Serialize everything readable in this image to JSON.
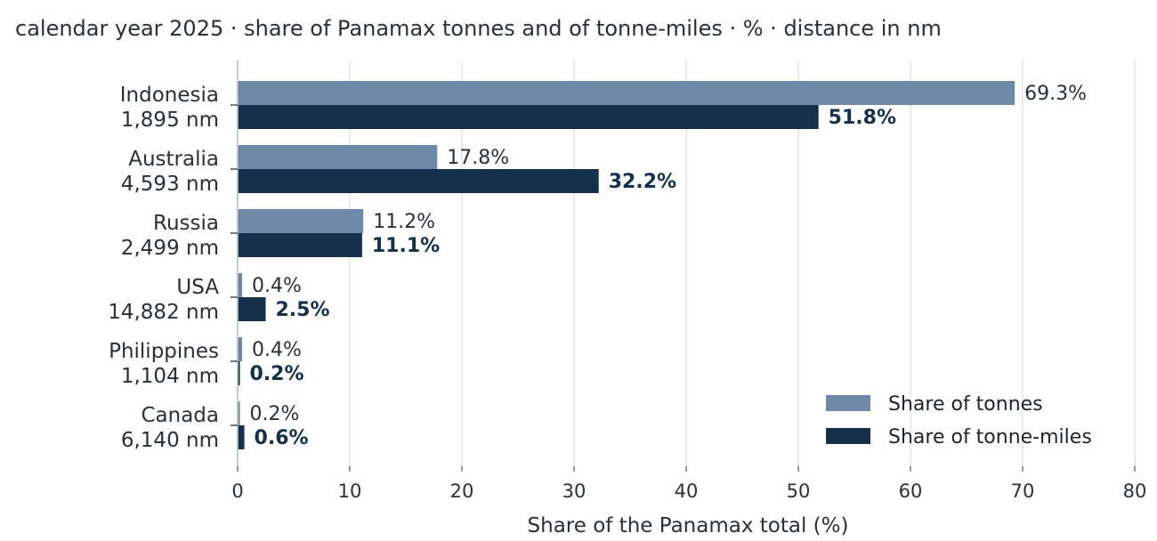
{
  "subtitle": "calendar year 2025 · share of Panamax tonnes and of tonne-miles · % · distance in nm",
  "chart_data": {
    "type": "bar",
    "orientation": "horizontal",
    "subtitle": "calendar year 2025 · share of Panamax tonnes and of tonne-miles · % · distance in nm",
    "xlabel": "Share of the Panamax total (%)",
    "ylabel": "",
    "xlim": [
      0,
      80
    ],
    "xticks": [
      0,
      10,
      20,
      30,
      40,
      50,
      60,
      70,
      80
    ],
    "grid": "vertical",
    "legend_position": "bottom-right",
    "categories": [
      {
        "name": "Indonesia",
        "distance": "1,895 nm"
      },
      {
        "name": "Australia",
        "distance": "4,593 nm"
      },
      {
        "name": "Russia",
        "distance": "2,499 nm"
      },
      {
        "name": "USA",
        "distance": "14,882 nm"
      },
      {
        "name": "Philippines",
        "distance": "1,104 nm"
      },
      {
        "name": "Canada",
        "distance": "6,140 nm"
      }
    ],
    "series": [
      {
        "name": "Share of tonnes",
        "color": "#6e89a7",
        "values": [
          69.3,
          17.8,
          11.2,
          0.4,
          0.4,
          0.2
        ],
        "labels": [
          "69.3%",
          "17.8%",
          "11.2%",
          "0.4%",
          "0.4%",
          "0.2%"
        ]
      },
      {
        "name": "Share of tonne-miles",
        "color": "#15304a",
        "values": [
          51.8,
          32.2,
          11.1,
          2.5,
          0.2,
          0.6
        ],
        "labels": [
          "51.8%",
          "32.2%",
          "11.1%",
          "2.5%",
          "0.2%",
          "0.6%"
        ]
      }
    ]
  }
}
